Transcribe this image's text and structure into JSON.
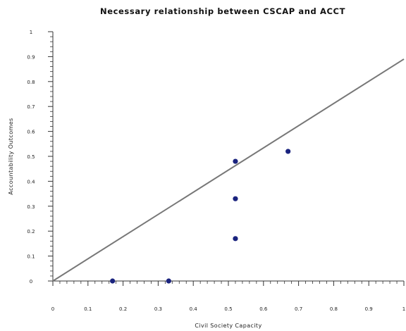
{
  "chart_data": {
    "type": "scatter",
    "title": "Necessary relationship between CSCAP and ACCT",
    "xlabel": "Civil Society Capacity",
    "ylabel": "Accountability Outcomes",
    "xlim": [
      0,
      1
    ],
    "ylim": [
      0,
      1
    ],
    "x_ticks": [
      "0",
      "0.1",
      "0.2",
      "0.3",
      "0.4",
      "0.5",
      "0.6",
      "0.7",
      "0.8",
      "0.9",
      "1"
    ],
    "y_ticks": [
      "0",
      "0.1",
      "0.2",
      "0.3",
      "0.4",
      "0.5",
      "0.6",
      "0.7",
      "0.8",
      "0.9",
      "1"
    ],
    "grid": false,
    "legend": "none",
    "reference_line": {
      "from": [
        0,
        0
      ],
      "to": [
        1,
        0.89
      ]
    },
    "points": [
      {
        "x": 0.17,
        "y": 0
      },
      {
        "x": 0.33,
        "y": 0
      },
      {
        "x": 0.52,
        "y": 0.48
      },
      {
        "x": 0.52,
        "y": 0.33
      },
      {
        "x": 0.52,
        "y": 0.17
      },
      {
        "x": 0.67,
        "y": 0.52
      }
    ],
    "colors": {
      "points": "#1a237e",
      "line": "#777777",
      "axis": "#333333"
    }
  }
}
